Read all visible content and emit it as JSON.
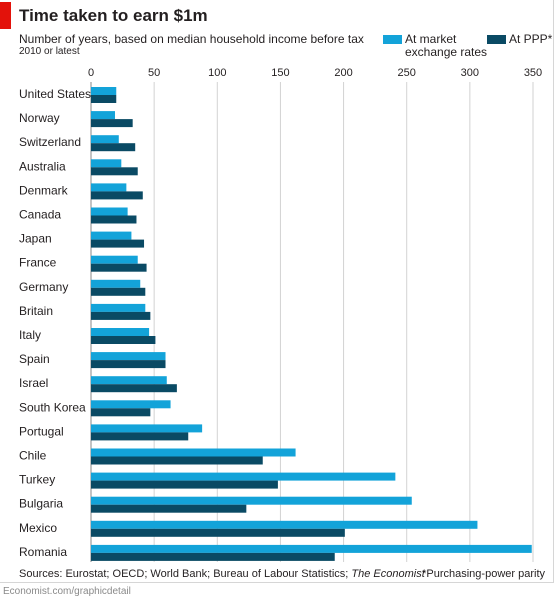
{
  "header": {
    "title": "Time taken to earn $1m",
    "subtitle": "Number of years, based on median household income before tax",
    "note": "2010 or latest"
  },
  "colors": {
    "market": "#13a3d9",
    "ppp": "#0a4a64",
    "grid": "#d2d2d2",
    "brand": "#e3120b"
  },
  "chart_data": {
    "type": "bar",
    "orientation": "horizontal",
    "categories": [
      "United States",
      "Norway",
      "Switzerland",
      "Australia",
      "Denmark",
      "Canada",
      "Japan",
      "France",
      "Germany",
      "Britain",
      "Italy",
      "Spain",
      "Israel",
      "South Korea",
      "Portugal",
      "Chile",
      "Turkey",
      "Bulgaria",
      "Mexico",
      "Romania"
    ],
    "series": [
      {
        "name": "At market exchange rates",
        "values": [
          20,
          19,
          22,
          24,
          28,
          29,
          32,
          37,
          39,
          43,
          46,
          59,
          60,
          63,
          88,
          162,
          241,
          254,
          306,
          349
        ]
      },
      {
        "name": "At PPP*",
        "values": [
          20,
          33,
          35,
          37,
          41,
          36,
          42,
          44,
          43,
          47,
          51,
          59,
          68,
          47,
          77,
          136,
          148,
          123,
          201,
          193
        ]
      }
    ],
    "xlim": [
      0,
      350
    ],
    "xticks": [
      0,
      50,
      100,
      150,
      200,
      250,
      300,
      350
    ],
    "grid": true,
    "legend_position": "top-right"
  },
  "legend": {
    "market_label_line1": "At market",
    "market_label_line2": "exchange rates",
    "ppp_label": "At PPP*"
  },
  "footer": {
    "sources": "Sources: Eurostat; OECD; World Bank; Bureau of Labour Statistics; ",
    "sources_italic": "The Economist",
    "note": "*Purchasing-power parity",
    "url": "Economist.com/graphicdetail"
  }
}
